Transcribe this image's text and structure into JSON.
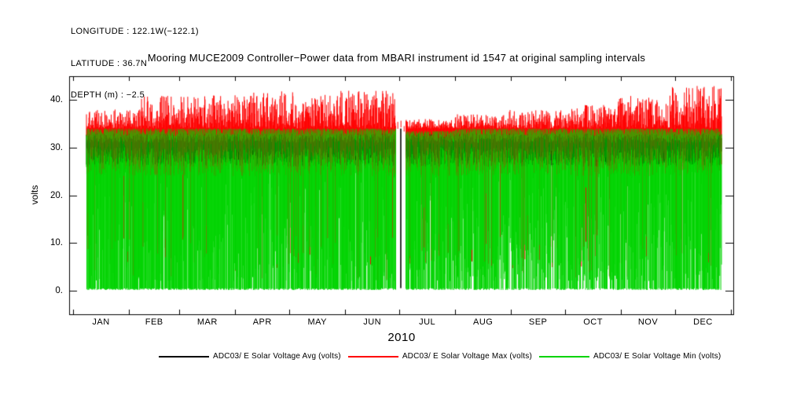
{
  "meta": {
    "longitude": "LONGITUDE : 122.1W(−122.1)",
    "latitude": "LATITUDE : 36.7N",
    "depth": "DEPTH (m) : −2.5"
  },
  "chart_data": {
    "type": "line",
    "title": "Mooring MUCE2009 Controller−Power data from MBARI instrument id 1547 at original sampling intervals",
    "ylabel": "volts",
    "xlabel": "2010",
    "x_tick_labels": [
      "JAN",
      "FEB",
      "MAR",
      "APR",
      "MAY",
      "JUN",
      "JUL",
      "AUG",
      "SEP",
      "OCT",
      "NOV",
      "DEC"
    ],
    "month_days": [
      31,
      28,
      31,
      30,
      31,
      30,
      31,
      31,
      30,
      31,
      30,
      31
    ],
    "y_ticks": [
      0,
      10,
      20,
      30,
      40
    ],
    "y_tick_labels": [
      "0.",
      "10.",
      "20.",
      "30.",
      "40."
    ],
    "ylim": [
      -5,
      45
    ],
    "grid": false,
    "legend_position": "bottom",
    "series": [
      {
        "name": "ADC03/ E Solar Voltage Avg (volts)",
        "color": "#000000"
      },
      {
        "name": "ADC03/ E Solar Voltage Max (volts)",
        "color": "#ff0000"
      },
      {
        "name": "ADC03/ E Solar Voltage Min (volts)",
        "color": "#00d400"
      }
    ],
    "data_gap": {
      "start_frac": 0.487,
      "end_frac": 0.503
    },
    "seed": 20100,
    "envelope": {
      "samples": 1800,
      "red_peak": [
        38,
        41,
        41,
        42,
        42,
        42,
        36,
        37,
        38,
        39,
        41,
        43
      ],
      "green_top": [
        34,
        34,
        34,
        34,
        34,
        34,
        33.5,
        34,
        34,
        34,
        34,
        34
      ],
      "green_zero_prob": [
        0.72,
        0.68,
        0.68,
        0.65,
        0.68,
        0.66,
        0.55,
        0.5,
        0.45,
        0.5,
        0.55,
        0.6
      ],
      "avg_band": [
        26,
        33
      ]
    }
  }
}
